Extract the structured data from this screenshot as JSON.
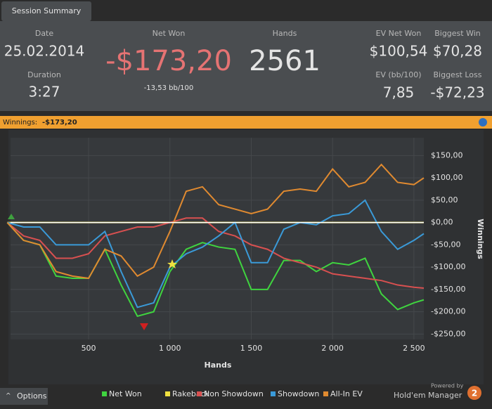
{
  "tab": "Session Summary",
  "stats": {
    "date": {
      "label": "Date",
      "value": "25.02.2014"
    },
    "duration": {
      "label": "Duration",
      "value": "3:27"
    },
    "net_won": {
      "label": "Net Won",
      "value": "-$173,20",
      "sub": "-13,53 bb/100"
    },
    "hands": {
      "label": "Hands",
      "value": "2561"
    },
    "ev_net_won": {
      "label": "EV Net Won",
      "value": "$100,54"
    },
    "biggest_win": {
      "label": "Biggest Win",
      "value": "$70,28"
    },
    "ev_bb": {
      "label": "EV (bb/100)",
      "value": "7,85"
    },
    "biggest_loss": {
      "label": "Biggest Loss",
      "value": "-$72,23"
    }
  },
  "strip": {
    "label": "Winnings:",
    "value": "-$173,20"
  },
  "footer": {
    "options": "Options",
    "powered": "Powered by",
    "brand": "Hold'em Manager",
    "badge": "2"
  },
  "chart_data": {
    "type": "line",
    "x_label": "Hands",
    "y_label": "Winnings",
    "x": [
      0,
      100,
      200,
      300,
      400,
      500,
      600,
      700,
      800,
      900,
      1000,
      1100,
      1200,
      1300,
      1400,
      1500,
      1600,
      1700,
      1800,
      1900,
      2000,
      2100,
      2200,
      2300,
      2400,
      2500,
      2561
    ],
    "series": [
      {
        "name": "Net Won",
        "color": "#3fd43f",
        "values": [
          0,
          -40,
          -50,
          -120,
          -125,
          -125,
          -60,
          -140,
          -210,
          -200,
          -110,
          -60,
          -45,
          -55,
          -60,
          -150,
          -150,
          -85,
          -85,
          -110,
          -90,
          -95,
          -80,
          -160,
          -195,
          -180,
          -173.2
        ]
      },
      {
        "name": "Rakeback",
        "color": "#f0e040",
        "values": [
          0,
          0,
          0,
          0,
          0,
          0,
          0,
          0,
          0,
          0,
          0,
          0,
          0,
          0,
          0,
          0,
          0,
          0,
          0,
          0,
          0,
          0,
          0,
          0,
          0,
          0,
          0
        ]
      },
      {
        "name": "Non Showdown",
        "color": "#d85050",
        "values": [
          0,
          -30,
          -40,
          -80,
          -80,
          -70,
          -30,
          -20,
          -10,
          -10,
          0,
          10,
          10,
          -20,
          -30,
          -50,
          -60,
          -80,
          -90,
          -100,
          -115,
          -120,
          -125,
          -130,
          -140,
          -145,
          -147
        ]
      },
      {
        "name": "Showdown",
        "color": "#3a9ad8",
        "values": [
          0,
          -10,
          -10,
          -50,
          -50,
          -50,
          -20,
          -110,
          -190,
          -180,
          -100,
          -70,
          -55,
          -30,
          0,
          -90,
          -90,
          -15,
          0,
          -5,
          15,
          20,
          50,
          -20,
          -60,
          -40,
          -25
        ]
      },
      {
        "name": "All-In EV",
        "color": "#e08a30",
        "values": [
          0,
          -40,
          -50,
          -110,
          -120,
          -125,
          -60,
          -75,
          -120,
          -100,
          -20,
          70,
          80,
          40,
          30,
          20,
          30,
          70,
          75,
          70,
          120,
          80,
          90,
          130,
          90,
          85,
          100
        ]
      }
    ],
    "xlim": [
      20,
      2561
    ],
    "ylim": [
      -262,
      190
    ],
    "xticks": [
      500,
      {
        "value": 1000,
        "label": "1 000"
      },
      {
        "value": 1500,
        "label": "1 500"
      },
      {
        "value": 2000,
        "label": "2 000"
      },
      {
        "value": 2500,
        "label": "2 500"
      }
    ],
    "yticks": [
      {
        "value": 150,
        "label": "$150,00"
      },
      {
        "value": 100,
        "label": "$100,00"
      },
      {
        "value": 50,
        "label": "$50,00"
      },
      {
        "value": 0,
        "label": "$0,00"
      },
      {
        "value": -50,
        "label": "-$50,00"
      },
      {
        "value": -100,
        "label": "-$100,00"
      },
      {
        "value": -150,
        "label": "-$150,00"
      },
      {
        "value": -200,
        "label": "-$200,00"
      },
      {
        "value": -250,
        "label": "-$250,00"
      }
    ],
    "grid": true
  }
}
